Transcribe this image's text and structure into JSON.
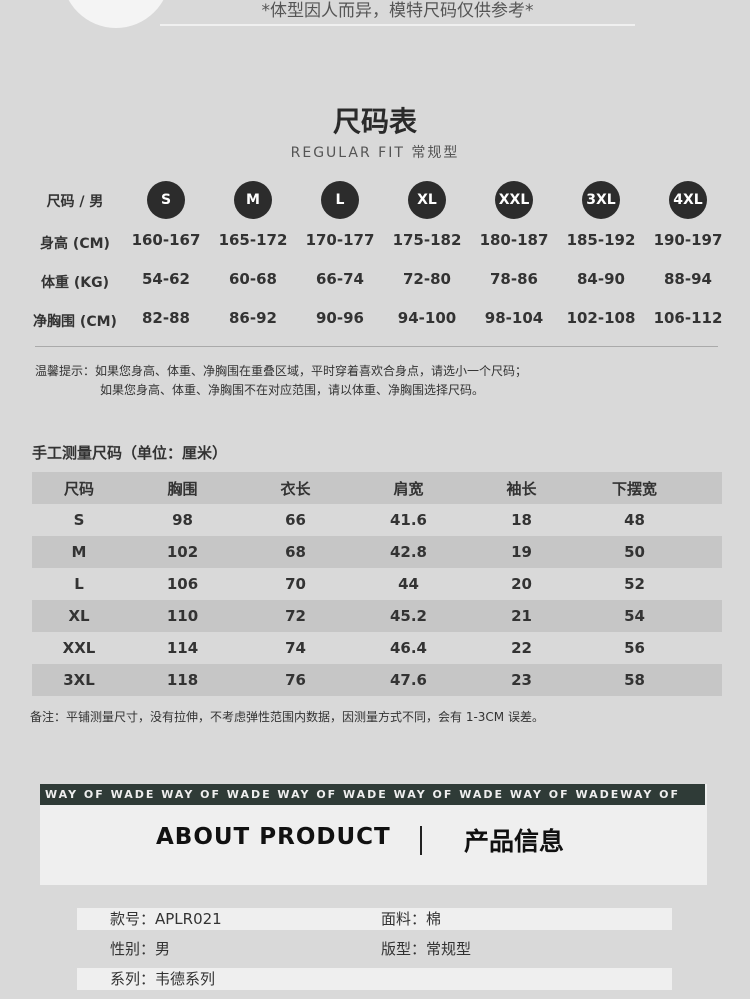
{
  "disclaimer": "*体型因人而异，模特尺码仅供参考*",
  "title": "尺码表",
  "subtitle": "REGULAR FIT 常规型",
  "size_chart": {
    "header_label": "尺码 / 男",
    "sizes": [
      "S",
      "M",
      "L",
      "XL",
      "XXL",
      "3XL",
      "4XL"
    ],
    "rows": [
      {
        "label": "身高 (CM)",
        "values": [
          "160-167",
          "165-172",
          "170-177",
          "175-182",
          "180-187",
          "185-192",
          "190-197"
        ]
      },
      {
        "label": "体重 (KG)",
        "values": [
          "54-62",
          "60-68",
          "66-74",
          "72-80",
          "78-86",
          "84-90",
          "88-94"
        ]
      },
      {
        "label": "净胸围 (CM)",
        "values": [
          "82-88",
          "86-92",
          "90-96",
          "94-100",
          "98-104",
          "102-108",
          "106-112"
        ]
      }
    ]
  },
  "tips": {
    "line1": "温馨提示：如果您身高、体重、净胸围在重叠区域，平时穿着喜欢合身点，请选小一个尺码；",
    "line2": "如果您身高、体重、净胸围不在对应范围，请以体重、净胸围选择尺码。"
  },
  "measure": {
    "title": "手工测量尺码（单位：厘米）",
    "headers": [
      "尺码",
      "胸围",
      "衣长",
      "肩宽",
      "袖长",
      "下摆宽"
    ],
    "rows": [
      [
        "S",
        "98",
        "66",
        "41.6",
        "18",
        "48"
      ],
      [
        "M",
        "102",
        "68",
        "42.8",
        "19",
        "50"
      ],
      [
        "L",
        "106",
        "70",
        "44",
        "20",
        "52"
      ],
      [
        "XL",
        "110",
        "72",
        "45.2",
        "21",
        "54"
      ],
      [
        "XXL",
        "114",
        "74",
        "46.4",
        "22",
        "56"
      ],
      [
        "3XL",
        "118",
        "76",
        "47.6",
        "23",
        "58"
      ]
    ],
    "note": "备注：平铺测量尺寸，没有拉伸，不考虑弹性范围内数据，因测量方式不同，会有 1-3CM 误差。"
  },
  "about": {
    "marquee": "WAY OF WADE   WAY OF WADE   WAY OF WADE   WAY OF WADE    WAY OF WADEWAY OF",
    "en": "ABOUT  PRODUCT",
    "cn": "产品信息"
  },
  "info": [
    [
      "款号：APLR021",
      "面料：棉"
    ],
    [
      "性别：男",
      "版型：常规型"
    ],
    [
      "系列：韦德系列",
      ""
    ]
  ],
  "colors": {
    "accent_dark": "#2f3b37",
    "circle": "#2c2c2c",
    "background": "#d9d9d9"
  }
}
